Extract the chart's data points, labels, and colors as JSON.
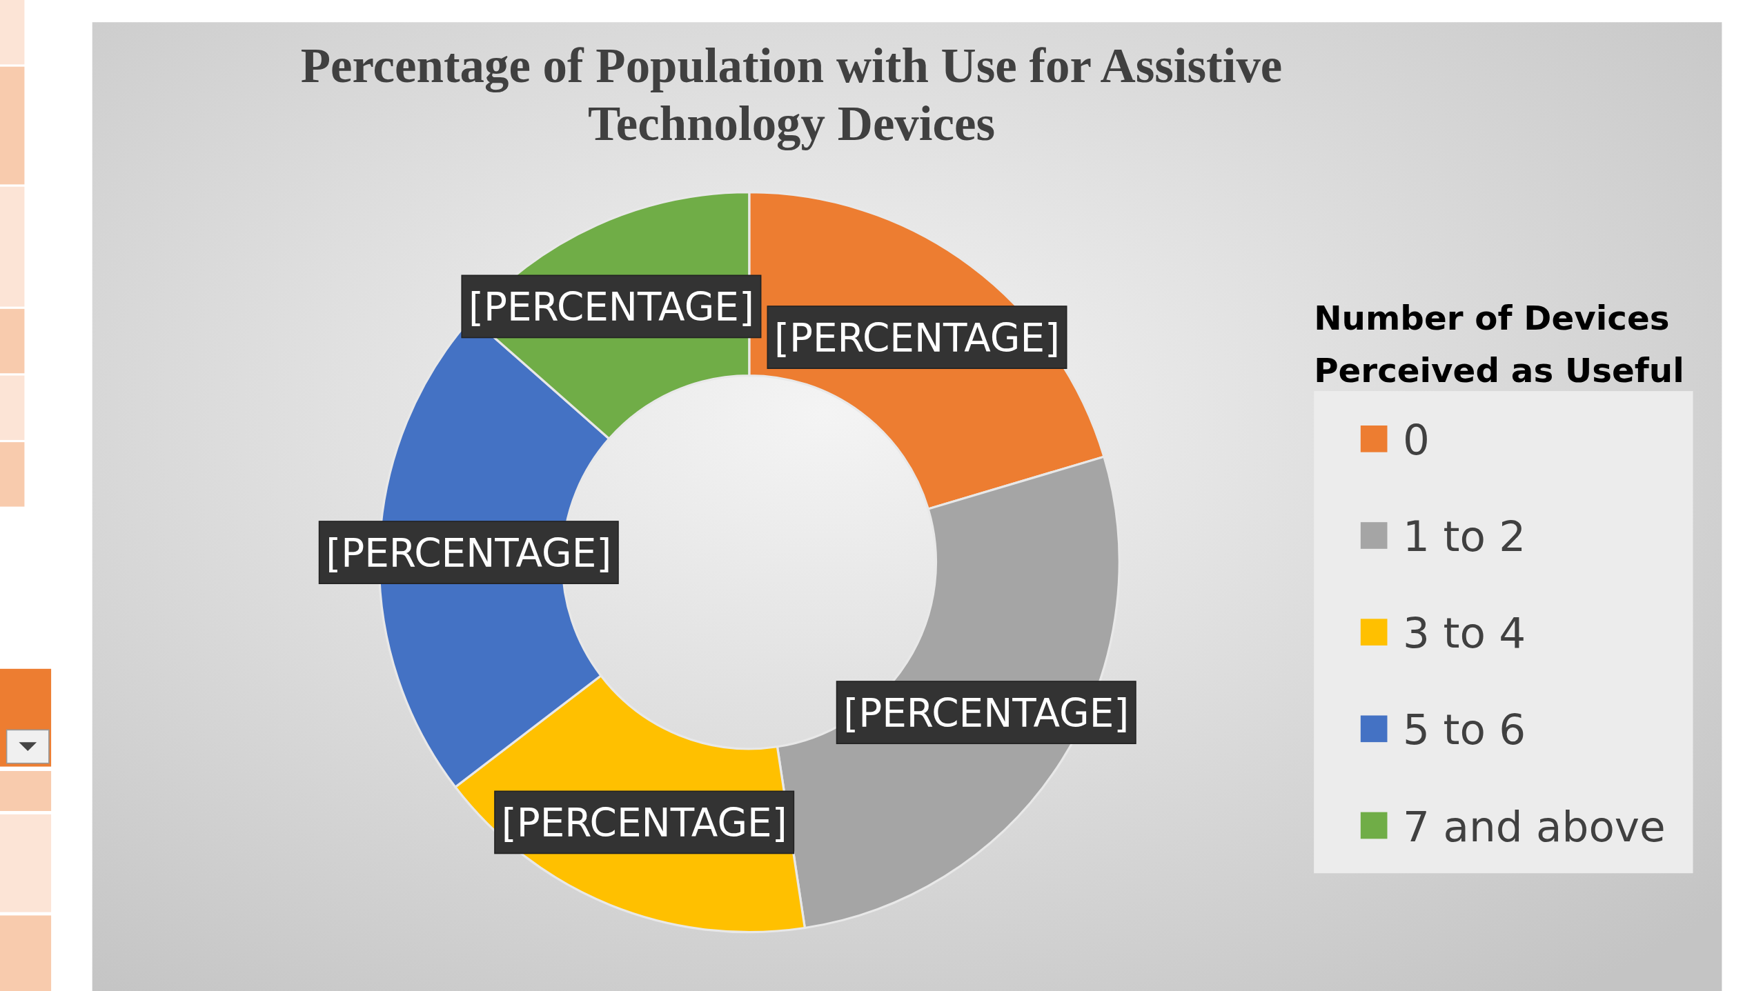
{
  "chart_data": {
    "type": "donut",
    "title": "Percentage of Population with Use for Assistive Technology Devices",
    "legend_title": "Number of Devices Perceived as Useful",
    "categories": [
      "0",
      "1 to 2",
      "3 to 4",
      "5 to 6",
      "7 and above"
    ],
    "values": [
      20.4,
      27.2,
      17,
      21.9,
      13.5
    ],
    "colors": [
      "#ed7d31",
      "#a5a5a5",
      "#ffc000",
      "#4472c4",
      "#70ad47"
    ],
    "value_labels": [
      "[PERCENTAGE]",
      "[PERCENTAGE]",
      "[PERCENTAGE]",
      "[PERCENTAGE]",
      "[PERCENTAGE]"
    ],
    "legend": "right"
  }
}
